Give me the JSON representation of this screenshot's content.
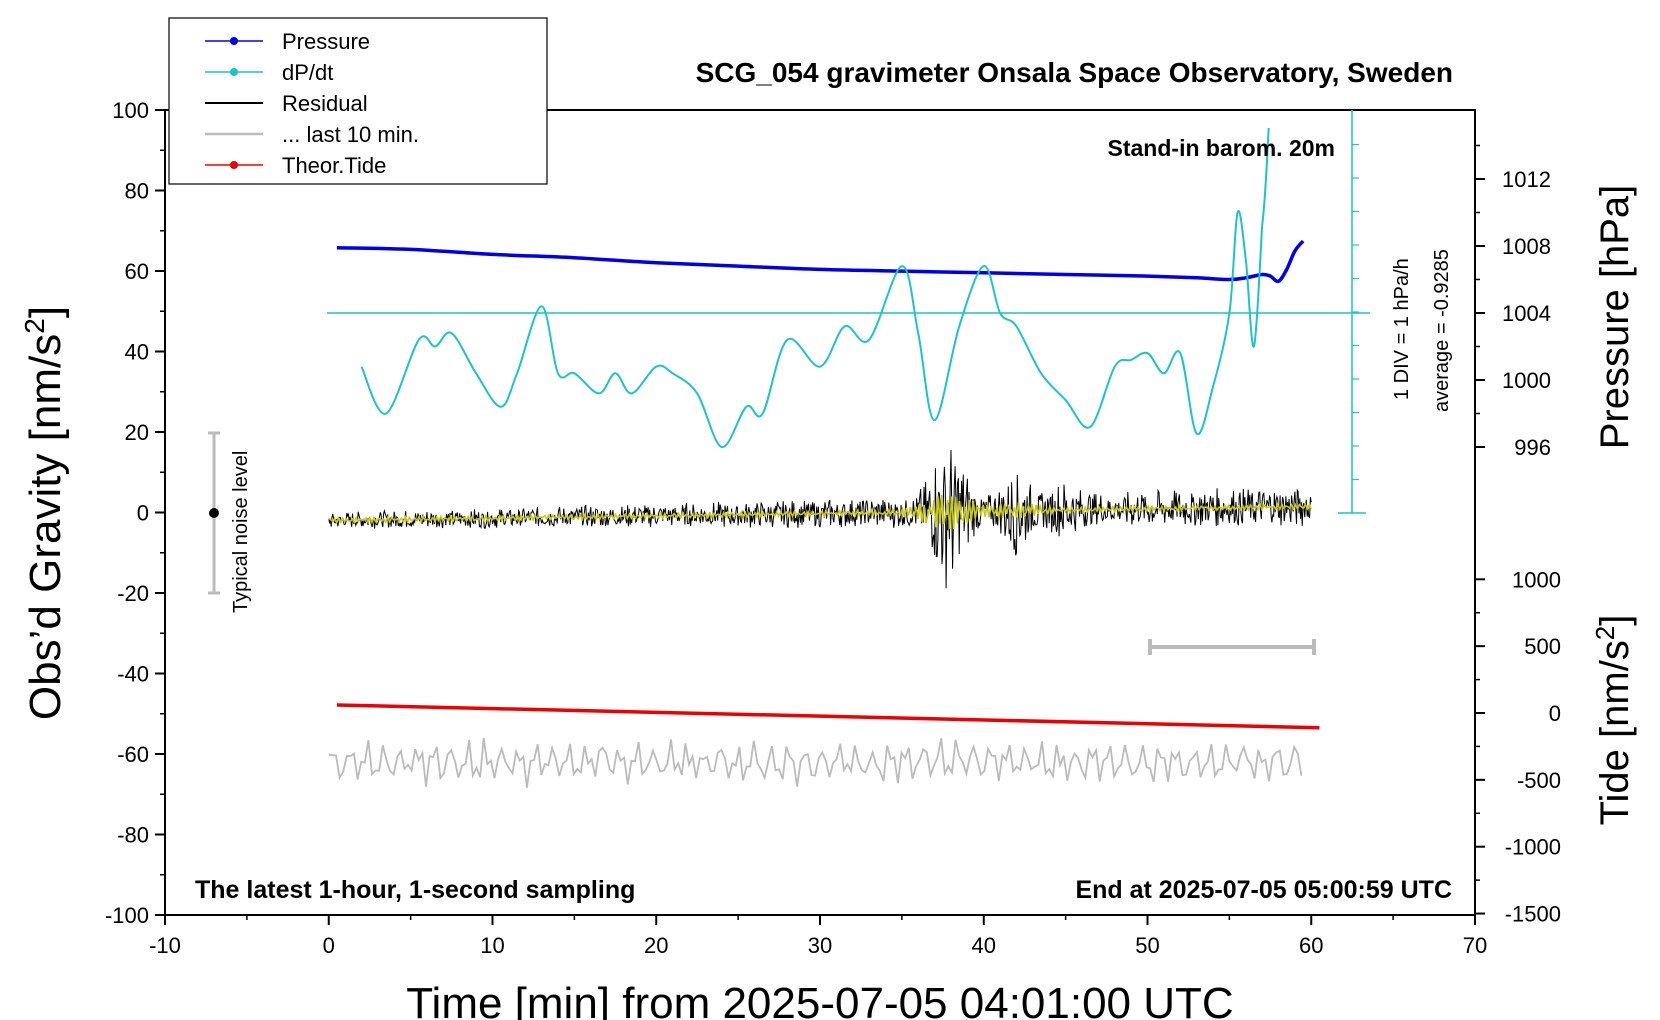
{
  "chart_data": {
    "type": "line",
    "title": "SCG_054 gravimeter Onsala Space Observatory, Sweden",
    "xlabel": "Time [min] from 2025-07-05 04:01:00 UTC",
    "ylabel_left": "Obs’d Gravity [nm/s",
    "ylabel_left_sup": "2",
    "ylabel_left_close": "]",
    "ylabel_pressure": "Pressure [hPa]",
    "ylabel_tide": "Tide [nm/s",
    "ylabel_tide_sup": "2",
    "ylabel_tide_close": "]",
    "xlim": [
      -10,
      70
    ],
    "ylim_left": [
      -100,
      100
    ],
    "x_ticks": [
      "-10",
      "0",
      "10",
      "20",
      "30",
      "40",
      "50",
      "60",
      "70"
    ],
    "y_left_ticks": [
      "100",
      "80",
      "60",
      "40",
      "20",
      "0",
      "-20",
      "-40",
      "-60",
      "-80",
      "-100"
    ],
    "pressure_ticks": [
      "1012",
      "1008",
      "1004",
      "1000",
      "996"
    ],
    "tide_ticks": [
      "1000",
      "500",
      "0",
      "-500",
      "-1000",
      "-1500"
    ],
    "annotations": {
      "barometer": "Stand-in barom. 20m",
      "period": "The latest 1-hour, 1-second sampling",
      "end_time": "End at 2025-07-05 05:00:59 UTC",
      "noise": "Typical noise level",
      "div_scale": "1 DIV = 1 hPa/h",
      "average": "average = -0.9285"
    },
    "legend": [
      {
        "label": "Pressure",
        "color": "#0000ee",
        "marker": true
      },
      {
        "label": "dP/dt",
        "color": "#1cc4c4",
        "marker": true
      },
      {
        "label": "Residual",
        "color": "#000000",
        "marker": false
      },
      {
        "label": "... last 10 min.",
        "color": "#bbbbbb",
        "marker": false
      },
      {
        "label": "Theor.Tide",
        "color": "#ee0000",
        "marker": true
      }
    ],
    "colors": {
      "pressure": "#0000ee",
      "dpdt": "#1cc4c4",
      "residual": "#000000",
      "residual_smooth": "#c8c81a",
      "last10": "#bbbbbb",
      "tide": "#ee0000",
      "noise_bar": "#bbbbbb"
    },
    "series": [
      {
        "name": "Pressure",
        "unit": "hPa",
        "x": [
          0.5,
          5,
          10,
          15,
          20,
          25,
          30,
          35,
          40,
          45,
          50,
          53,
          55,
          56,
          57,
          57.5,
          58,
          58.5,
          59,
          59.5
        ],
        "y": [
          1007.9,
          1007.8,
          1007.5,
          1007.3,
          1007.0,
          1006.8,
          1006.6,
          1006.5,
          1006.4,
          1006.3,
          1006.2,
          1006.1,
          1006.0,
          1006.1,
          1006.3,
          1006.2,
          1005.9,
          1006.6,
          1007.7,
          1008.3
        ]
      },
      {
        "name": "dP/dt",
        "unit": "hPa/h",
        "x": [
          2,
          3.5,
          5.5,
          6.5,
          7.5,
          9,
          10.5,
          11.5,
          13,
          14,
          15,
          16.5,
          17.5,
          18.5,
          20,
          21,
          22.5,
          24,
          25.5,
          26.5,
          28,
          30,
          31.5,
          33,
          35,
          36,
          37,
          38.5,
          40,
          41,
          42,
          43.5,
          45,
          46.5,
          48,
          49,
          50,
          51,
          52,
          53,
          54,
          55,
          55.5,
          56,
          56.5,
          57
        ],
        "y": [
          -0.8,
          -1.5,
          -0.4,
          -0.5,
          -0.3,
          -0.9,
          -1.4,
          -0.9,
          0.1,
          -0.9,
          -0.9,
          -1.2,
          -0.9,
          -1.2,
          -0.8,
          -0.9,
          -1.2,
          -2.0,
          -1.4,
          -1.5,
          -0.4,
          -0.8,
          -0.2,
          -0.4,
          0.7,
          -0.3,
          -1.6,
          -0.2,
          0.7,
          0.0,
          -0.2,
          -0.9,
          -1.3,
          -1.7,
          -0.8,
          -0.7,
          -0.6,
          -0.9,
          -0.6,
          -1.8,
          -1.1,
          0.0,
          1.5,
          0.8,
          -0.5,
          1.3
        ]
      },
      {
        "name": "Theor.Tide",
        "unit": "nm/s2",
        "x": [
          0.5,
          60.5
        ],
        "y": [
          60,
          -110
        ]
      }
    ]
  }
}
